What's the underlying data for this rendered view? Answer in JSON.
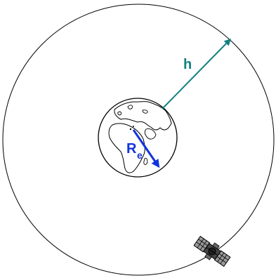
{
  "labels": {
    "orbit_height": "h",
    "earth_radius_main": "R",
    "earth_radius_sub": "e"
  },
  "colors": {
    "orbit_arrow": "#138080",
    "radius_arrow": "#1133dd",
    "outline": "#000000"
  },
  "icons": {
    "earth": "earth-globe-icon",
    "satellite": "satellite-icon"
  }
}
